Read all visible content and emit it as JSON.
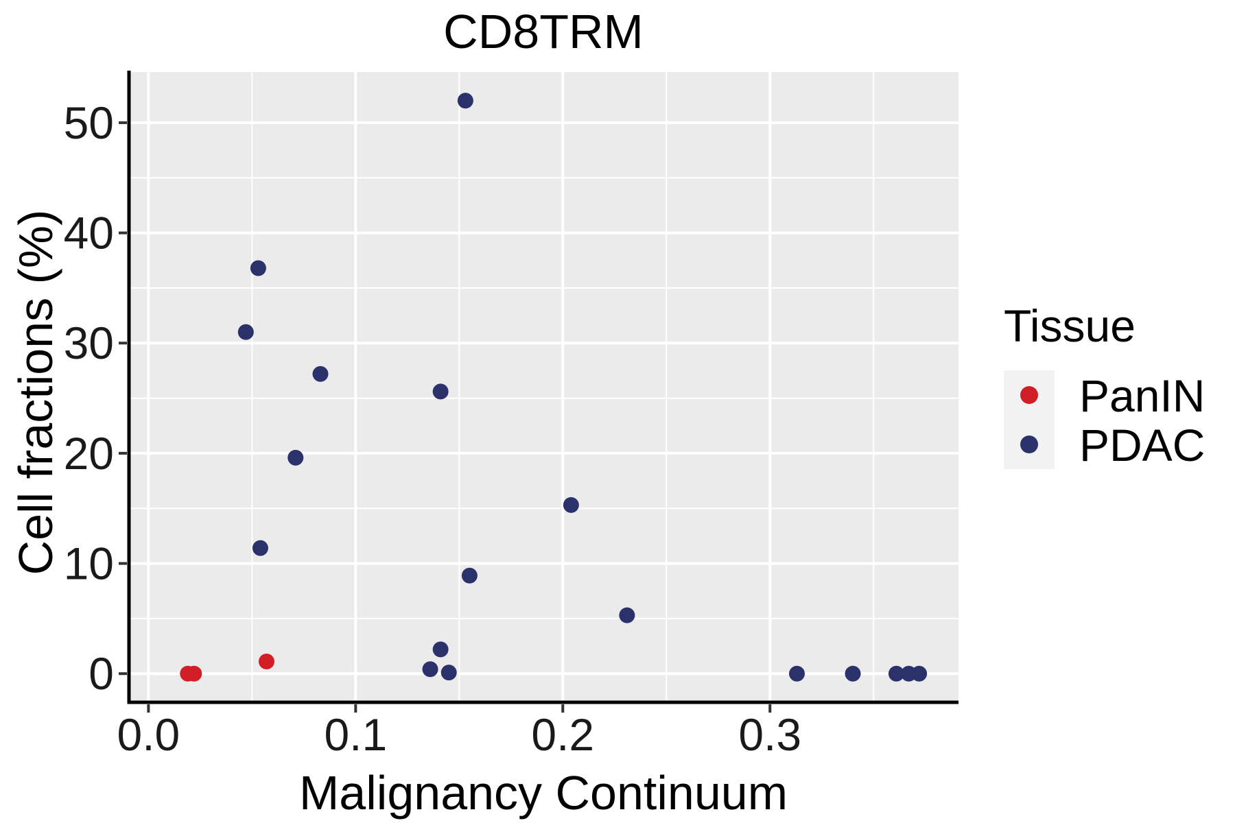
{
  "chart_data": {
    "type": "scatter",
    "title": "CD8TRM",
    "xlabel": "Malignancy Continuum",
    "ylabel": "Cell fractions (%)",
    "legend": {
      "title": "Tissue",
      "position": "right"
    },
    "colors": {
      "panel_background": "#EBEBEB",
      "grid_major": "#FFFFFF",
      "grid_minor": "#FFFFFF",
      "axis_line": "#000000",
      "tick_mark": "#333333",
      "legend_key_background": "#F2F2F2"
    },
    "x_axis": {
      "label": "Malignancy Continuum",
      "range": [
        -0.0094,
        0.391
      ],
      "ticks": [
        0,
        0.1,
        0.2,
        0.3
      ],
      "tick_labels": [
        "0.0",
        "0.1",
        "0.2",
        "0.3"
      ],
      "minor_ticks": [
        0.05,
        0.15,
        0.25,
        0.35
      ],
      "grid": true
    },
    "y_axis": {
      "label": "Cell fractions (%)",
      "range": [
        -2.6,
        54.6
      ],
      "ticks": [
        0,
        10,
        20,
        30,
        40,
        50
      ],
      "tick_labels": [
        "0",
        "10",
        "20",
        "30",
        "40",
        "50"
      ],
      "minor_ticks": [
        5,
        15,
        25,
        35,
        45
      ],
      "grid": true
    },
    "series": [
      {
        "name": "PanIN",
        "color": "#D21F27",
        "points": [
          [
            0.019,
            0.0
          ],
          [
            0.022,
            0.0
          ],
          [
            0.057,
            1.1
          ]
        ]
      },
      {
        "name": "PDAC",
        "color": "#2B316B",
        "points": [
          [
            0.047,
            31.0
          ],
          [
            0.053,
            36.8
          ],
          [
            0.054,
            11.4
          ],
          [
            0.071,
            19.6
          ],
          [
            0.083,
            27.2
          ],
          [
            0.136,
            0.4
          ],
          [
            0.141,
            25.6
          ],
          [
            0.141,
            2.2
          ],
          [
            0.145,
            0.1
          ],
          [
            0.153,
            52.0
          ],
          [
            0.155,
            8.9
          ],
          [
            0.204,
            15.3
          ],
          [
            0.231,
            5.3
          ],
          [
            0.313,
            0.0
          ],
          [
            0.34,
            0.0
          ],
          [
            0.361,
            0.0
          ],
          [
            0.367,
            0.0
          ],
          [
            0.372,
            0.0
          ]
        ]
      }
    ]
  }
}
